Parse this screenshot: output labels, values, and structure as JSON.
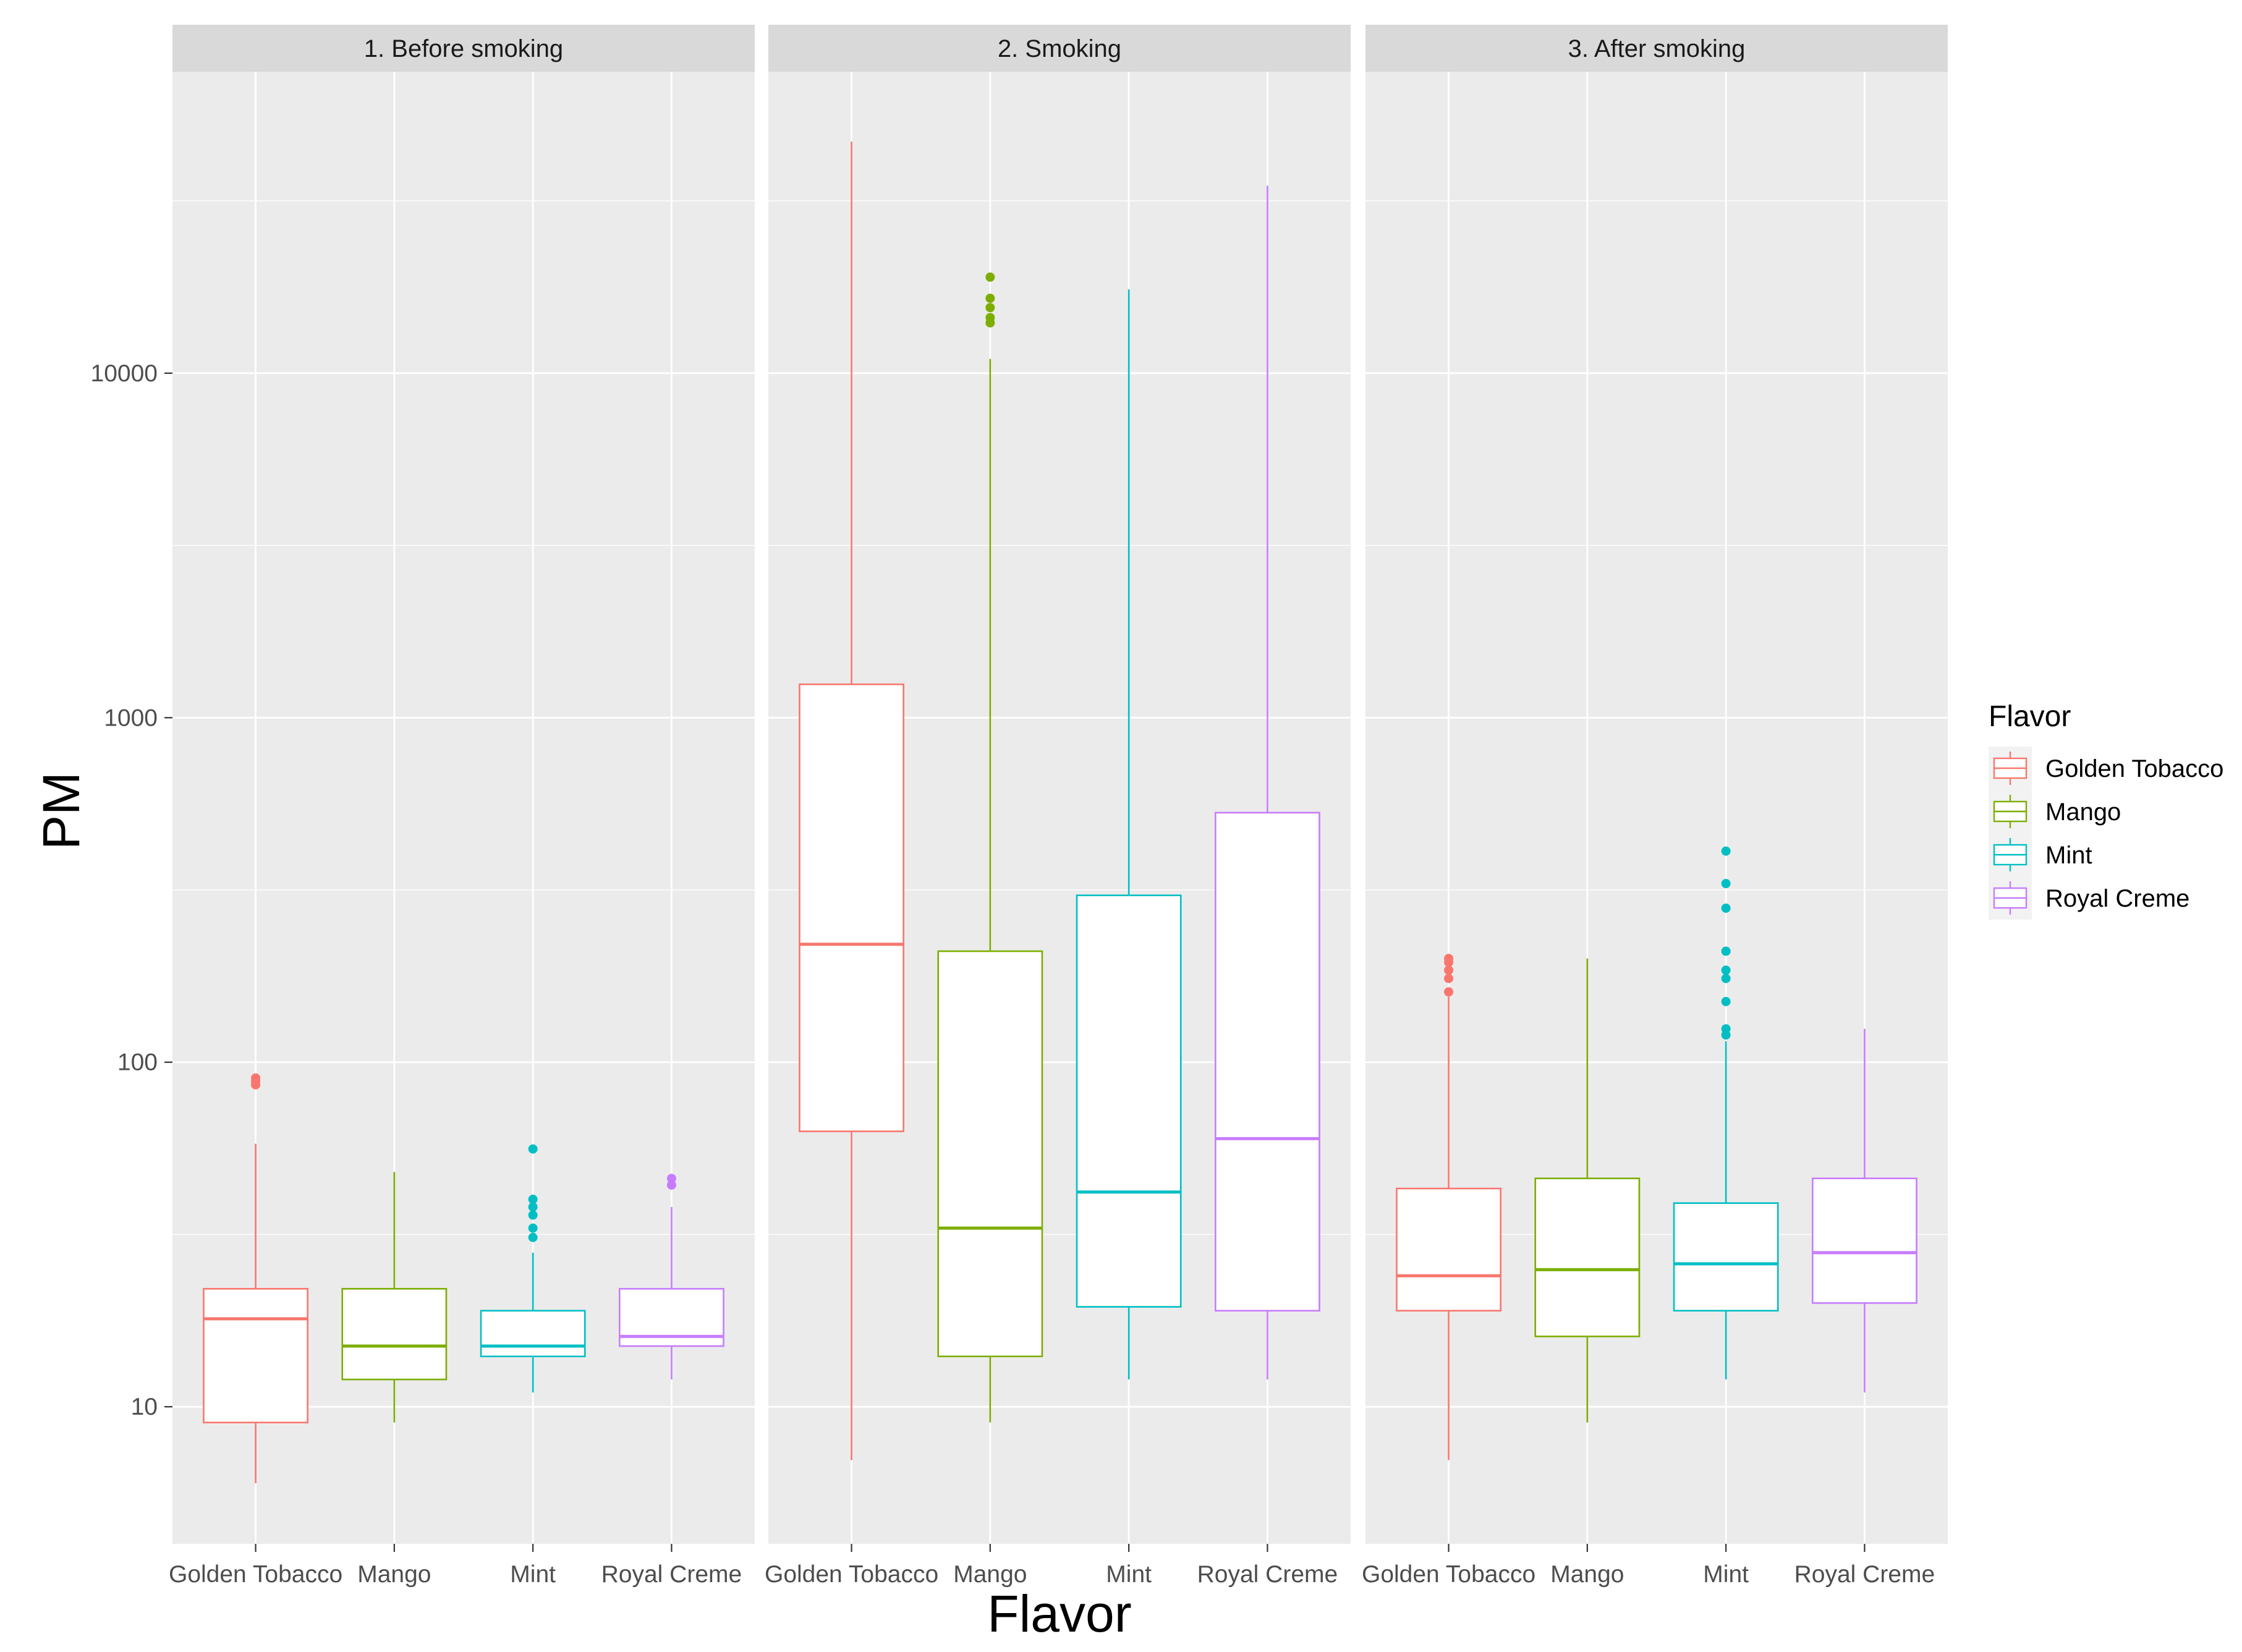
{
  "chart_data": {
    "type": "boxplot",
    "title": "",
    "xlabel": "Flavor",
    "ylabel": "PM",
    "y_scale": "log10",
    "ylim": [
      4,
      75000
    ],
    "y_ticks": [
      10,
      100,
      1000,
      10000
    ],
    "y_tick_labels": [
      "10",
      "100",
      "1000",
      "10000"
    ],
    "categories": [
      "Golden Tobacco",
      "Mango",
      "Mint",
      "Royal Creme"
    ],
    "colors": {
      "Golden Tobacco": "#F8766D",
      "Mango": "#7CAE00",
      "Mint": "#00BFC4",
      "Royal Creme": "#C77CFF"
    },
    "panel_bg": "#EBEBEB",
    "strip_bg": "#D9D9D9",
    "legend": {
      "title": "Flavor",
      "entries": [
        "Golden Tobacco",
        "Mango",
        "Mint",
        "Royal Creme"
      ],
      "position": "right"
    },
    "facets": [
      {
        "label": "1. Before smoking",
        "boxes": [
          {
            "flavor": "Golden Tobacco",
            "min": 6,
            "q1": 9,
            "median": 18,
            "q3": 22,
            "max": 58,
            "outliers": [
              86,
              88,
              90
            ]
          },
          {
            "flavor": "Mango",
            "min": 9,
            "q1": 12,
            "median": 15,
            "q3": 22,
            "max": 48,
            "outliers": []
          },
          {
            "flavor": "Mint",
            "min": 11,
            "q1": 14,
            "median": 15,
            "q3": 19,
            "max": 28,
            "outliers": [
              31,
              33,
              36,
              38,
              40,
              56
            ]
          },
          {
            "flavor": "Royal Creme",
            "min": 12,
            "q1": 15,
            "median": 16,
            "q3": 22,
            "max": 38,
            "outliers": [
              44,
              46
            ]
          }
        ]
      },
      {
        "label": "2. Smoking",
        "boxes": [
          {
            "flavor": "Golden Tobacco",
            "min": 7,
            "q1": 63,
            "median": 220,
            "q3": 1250,
            "max": 47000,
            "outliers": []
          },
          {
            "flavor": "Mango",
            "min": 9,
            "q1": 14,
            "median": 33,
            "q3": 210,
            "max": 11000,
            "outliers": [
              14000,
              14500,
              15500,
              16500,
              19000
            ]
          },
          {
            "flavor": "Mint",
            "min": 12,
            "q1": 19.5,
            "median": 42,
            "q3": 305,
            "max": 17500,
            "outliers": []
          },
          {
            "flavor": "Royal Creme",
            "min": 12,
            "q1": 19,
            "median": 60,
            "q3": 530,
            "max": 35000,
            "outliers": []
          }
        ]
      },
      {
        "label": "3. After smoking",
        "boxes": [
          {
            "flavor": "Golden Tobacco",
            "min": 7,
            "q1": 19,
            "median": 24,
            "q3": 43,
            "max": 155,
            "outliers": [
              160,
              175,
              185,
              195,
              200
            ]
          },
          {
            "flavor": "Mango",
            "min": 9,
            "q1": 16,
            "median": 25,
            "q3": 46,
            "max": 200,
            "outliers": []
          },
          {
            "flavor": "Mint",
            "min": 12,
            "q1": 19,
            "median": 26,
            "q3": 39,
            "max": 115,
            "outliers": [
              120,
              125,
              150,
              175,
              185,
              210,
              280,
              330,
              410
            ]
          },
          {
            "flavor": "Royal Creme",
            "min": 11,
            "q1": 20,
            "median": 28,
            "q3": 46,
            "max": 125,
            "outliers": []
          }
        ]
      }
    ]
  }
}
